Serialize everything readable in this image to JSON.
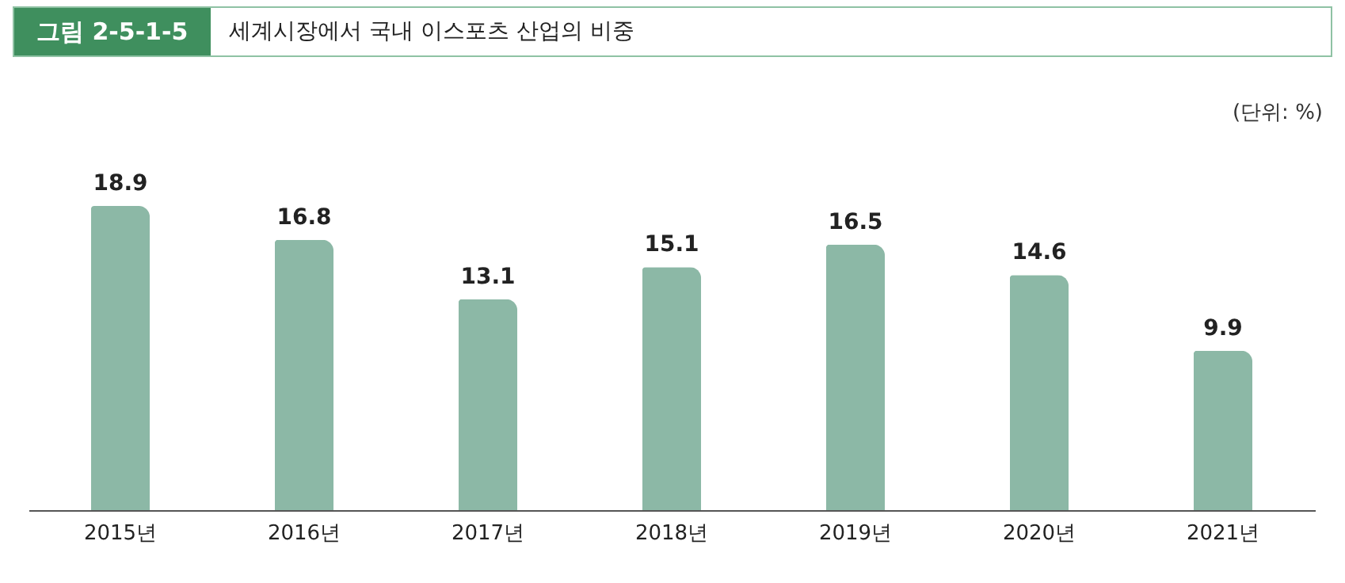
{
  "chart_data": {
    "type": "bar",
    "subtitle": "그림 2-5-1-5",
    "title": "세계시장에서 국내 이스포츠 산업의 비중",
    "annotations": [
      "(단위: %)"
    ],
    "categories": [
      "2015년",
      "2016년",
      "2017년",
      "2018년",
      "2019년",
      "2020년",
      "2021년"
    ],
    "values": [
      18.9,
      16.8,
      13.1,
      15.1,
      16.5,
      14.6,
      9.9
    ],
    "color": "#8cb8a6",
    "data_labels": true
  }
}
